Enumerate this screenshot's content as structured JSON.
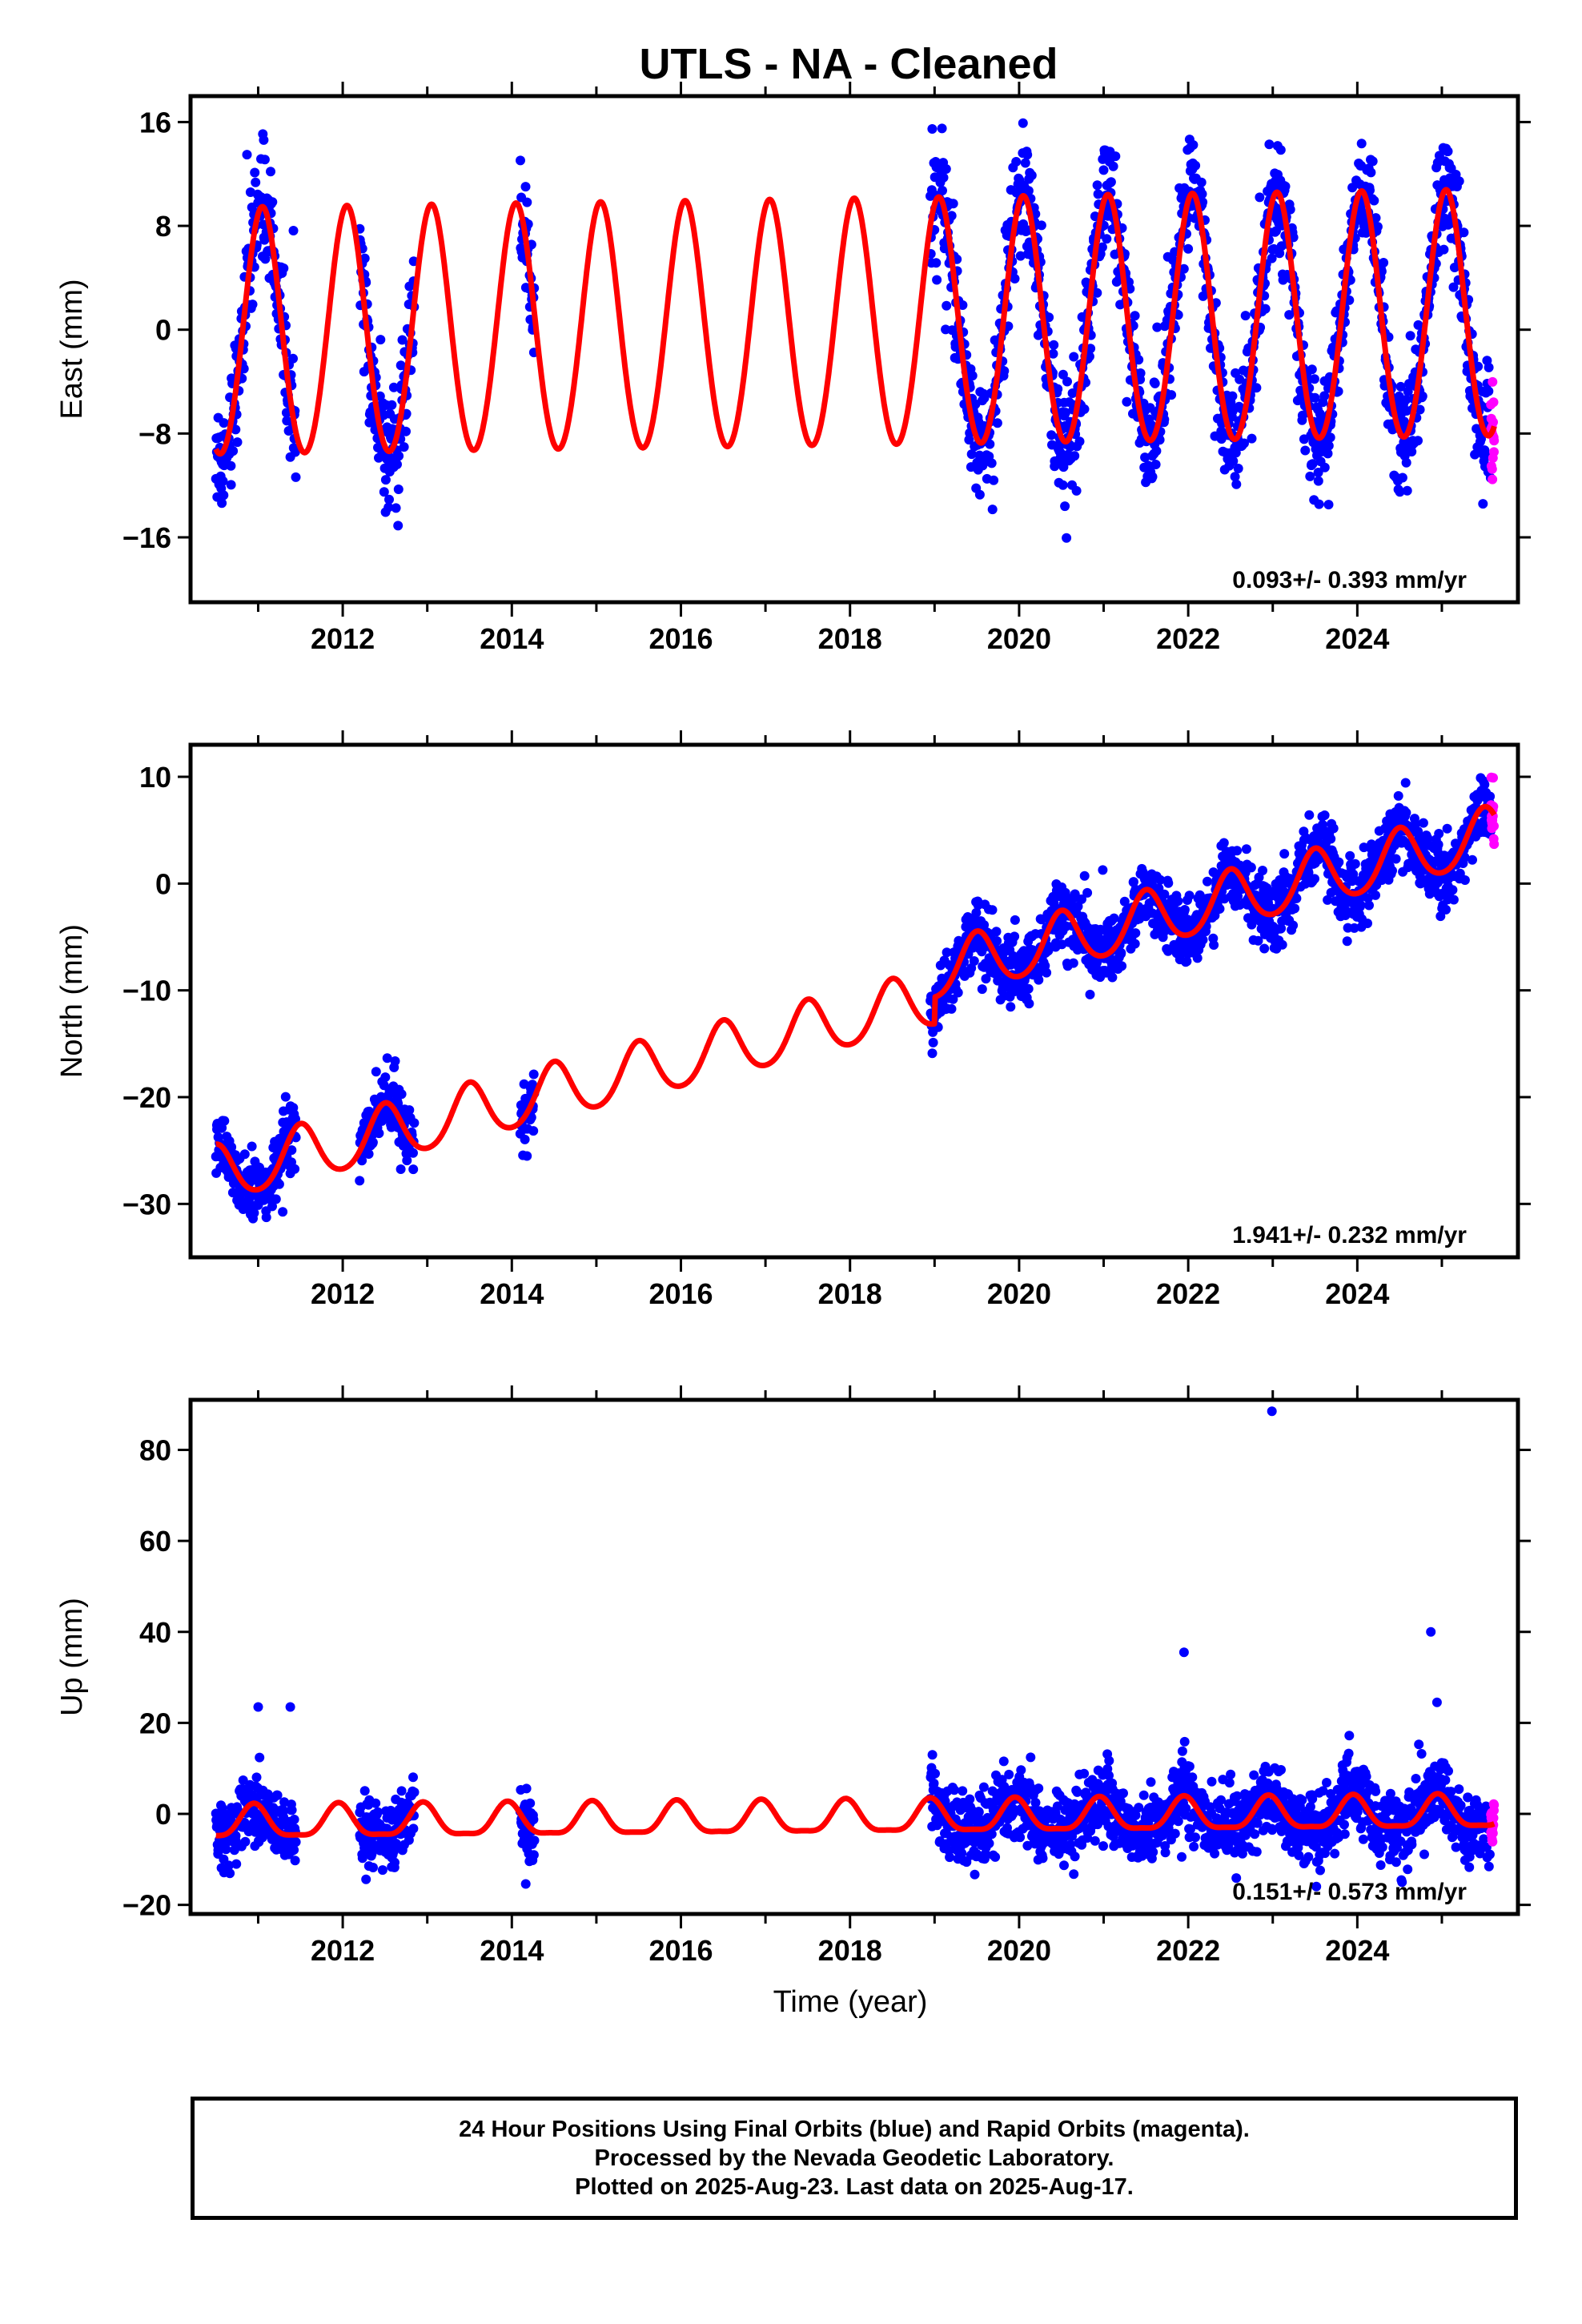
{
  "chart_data": {
    "type": "scatter",
    "title": "UTLS  - NA - Cleaned",
    "xlabel": "Time (year)",
    "xlim": [
      2010.2,
      2025.9
    ],
    "x_ticks": [
      "2012",
      "2014",
      "2016",
      "2018",
      "2020",
      "2022",
      "2024"
    ],
    "grid": false,
    "colors": {
      "final": "#0000ff",
      "rapid": "#ff00ff",
      "model": "#ff0000"
    },
    "data_segments": [
      [
        2010.5,
        2011.45
      ],
      [
        2012.2,
        2012.85
      ],
      [
        2014.1,
        2014.27
      ],
      [
        2018.95,
        2025.58
      ]
    ],
    "rapid_segment": [
      2025.58,
      2025.62
    ],
    "panels": [
      {
        "name": "east",
        "ylabel": "East (mm)",
        "ylim": [
          -21,
          18
        ],
        "y_ticks": [
          "16",
          "8",
          "0",
          "−8",
          "−16"
        ],
        "y_tick_values": [
          16,
          8,
          0,
          -8,
          -16
        ],
        "rate": "0.093+/- 0.393 mm/yr",
        "model": {
          "offset": 0.5,
          "trend": 0.093,
          "annual_amp": 9.5,
          "annual_peak": 2011.05,
          "semiannual_amp": 0.5,
          "pre_2019_shift": 0.0
        },
        "noise_mm": 2.2
      },
      {
        "name": "north",
        "ylabel": "North (mm)",
        "ylim": [
          -35,
          13
        ],
        "y_ticks": [
          "10",
          "0",
          "−10",
          "−20",
          "−30"
        ],
        "y_tick_values": [
          10,
          0,
          -10,
          -20,
          -30
        ],
        "rate": "1.941+/- 0.232 mm/yr",
        "model": {
          "offset": -2.5,
          "trend": 1.941,
          "annual_amp": 2.6,
          "annual_peak": 2025.5,
          "semiannual_amp": 0.3,
          "pre_2019_shift": -2.5
        },
        "noise_mm": 1.6
      },
      {
        "name": "up",
        "ylabel": "Up (mm)",
        "ylim": [
          -22,
          91
        ],
        "y_ticks": [
          "80",
          "60",
          "40",
          "20",
          "0",
          "−20"
        ],
        "y_tick_values": [
          80,
          60,
          40,
          20,
          0,
          -20
        ],
        "rate": "0.151+/- 0.573 mm/yr",
        "model": {
          "offset": -0.5,
          "trend": 0.151,
          "annual_amp": 3.5,
          "annual_peak": 2010.95,
          "semiannual_amp": 1.0,
          "pre_2019_shift": 0.0
        },
        "noise_mm": 4.0,
        "outliers": [
          [
            2022.99,
            88.5
          ],
          [
            2024.87,
            40
          ],
          [
            2021.95,
            35.5
          ],
          [
            2011.0,
            23.5
          ],
          [
            2011.38,
            23.5
          ]
        ]
      }
    ]
  },
  "footer": {
    "line1": "24 Hour Positions Using Final Orbits (blue) and Rapid Orbits (magenta).",
    "line2": "Processed by the Nevada Geodetic Laboratory.",
    "line3": "Plotted on 2025-Aug-23. Last data on 2025-Aug-17."
  }
}
